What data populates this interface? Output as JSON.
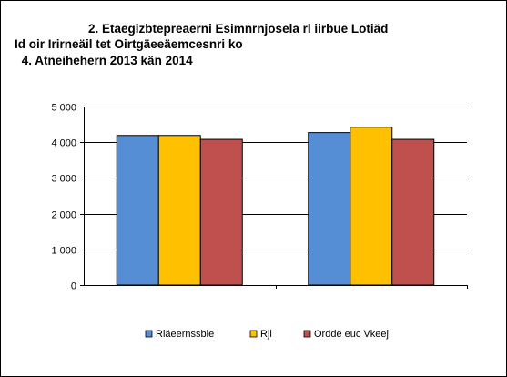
{
  "chart_data": {
    "type": "bar",
    "title_lines": [
      "2. Etaegizbtepreaerni Esimnrnjosela rl iirbue Lotiäd",
      "Id oir Irirneäil tet Oirtgäeeäemcesnri ko",
      " 4. Atneihehern 2013 kän 2014"
    ],
    "categories": [
      "",
      ""
    ],
    "series": [
      {
        "name": "Riäeernssbie",
        "color": "#558ED5",
        "values": [
          4190,
          4270
        ]
      },
      {
        "name": "Rjl",
        "color": "#FFC000",
        "values": [
          4190,
          4420
        ]
      },
      {
        "name": "Ordde euc Vkeej",
        "color": "#C0504D",
        "values": [
          4080,
          4080
        ]
      }
    ],
    "yticks": [
      "0",
      "1 000",
      "2 000",
      "3 000",
      "4 000",
      "5 000"
    ],
    "ylim": [
      0,
      5000
    ],
    "grid": true,
    "legend_position": "bottom"
  }
}
